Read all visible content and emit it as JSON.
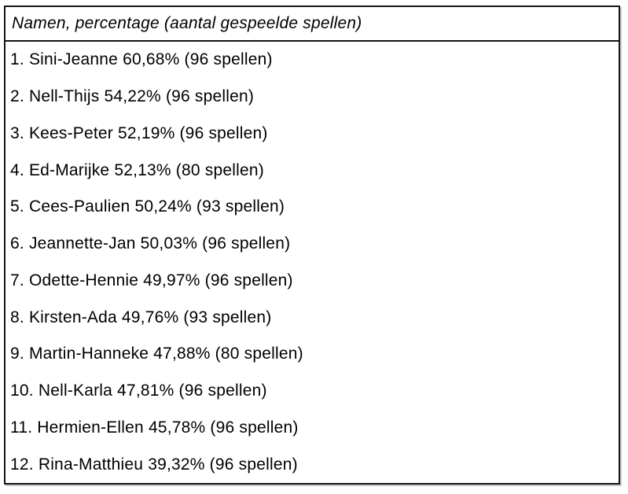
{
  "table": {
    "header": "Namen, percentage (aantal gespeelde spellen)",
    "rows": [
      {
        "rank": "1.",
        "pair": "Sini-Jeanne",
        "percentage": "60,68%",
        "games": "96 spellen",
        "text": "1. Sini-Jeanne 60,68% (96 spellen)"
      },
      {
        "rank": "2.",
        "pair": "Nell-Thijs",
        "percentage": "54,22%",
        "games": "96 spellen",
        "text": "2. Nell-Thijs 54,22% (96 spellen)"
      },
      {
        "rank": "3.",
        "pair": "Kees-Peter",
        "percentage": "52,19%",
        "games": "96 spellen",
        "text": "3. Kees-Peter 52,19% (96 spellen)"
      },
      {
        "rank": "4.",
        "pair": "Ed-Marijke",
        "percentage": "52,13%",
        "games": "80 spellen",
        "text": "4. Ed-Marijke 52,13% (80 spellen)"
      },
      {
        "rank": "5.",
        "pair": "Cees-Paulien",
        "percentage": "50,24%",
        "games": "93 spellen",
        "text": "5. Cees-Paulien 50,24% (93 spellen)"
      },
      {
        "rank": "6.",
        "pair": "Jeannette-Jan",
        "percentage": "50,03%",
        "games": "96 spellen",
        "text": "6. Jeannette-Jan 50,03% (96 spellen)"
      },
      {
        "rank": "7.",
        "pair": "Odette-Hennie",
        "percentage": "49,97%",
        "games": "96 spellen",
        "text": "7. Odette-Hennie 49,97% (96 spellen)"
      },
      {
        "rank": "8.",
        "pair": "Kirsten-Ada",
        "percentage": "49,76%",
        "games": "93 spellen",
        "text": "8. Kirsten-Ada 49,76% (93 spellen)"
      },
      {
        "rank": "9.",
        "pair": "Martin-Hanneke",
        "percentage": "47,88%",
        "games": "80 spellen",
        "text": "9. Martin-Hanneke 47,88% (80 spellen)"
      },
      {
        "rank": "10.",
        "pair": "Nell-Karla",
        "percentage": "47,81%",
        "games": "96 spellen",
        "text": "10. Nell-Karla 47,81% (96 spellen)"
      },
      {
        "rank": "11.",
        "pair": "Hermien-Ellen",
        "percentage": "45,78%",
        "games": "96 spellen",
        "text": "11. Hermien-Ellen 45,78% (96 spellen)"
      },
      {
        "rank": "12.",
        "pair": "Rina-Matthieu",
        "percentage": "39,32%",
        "games": "96 spellen",
        "text": "12. Rina-Matthieu 39,32% (96 spellen)"
      }
    ],
    "colors": {
      "border": "#151515",
      "text": "#000000",
      "background": "#ffffff"
    }
  }
}
